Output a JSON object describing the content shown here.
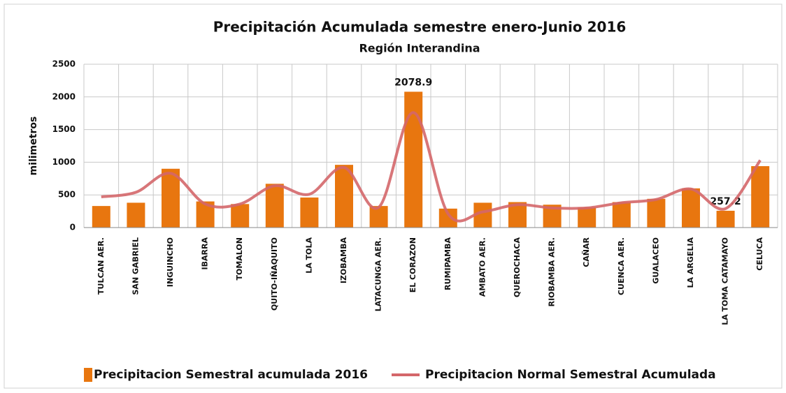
{
  "chart_data": {
    "type": "bar",
    "title": "Precipitación  Acumulada  semestre  enero-Junio  2016",
    "subtitle": "Región Interandina",
    "y_label": "milimetros",
    "categories": [
      "TULCAN AER.",
      "SAN GABRIEL",
      "INGUINCHO",
      "IBARRA",
      "TOMALON",
      "QUITO-IÑAQUITO",
      "LA TOLA",
      "IZOBAMBA",
      "LATACUNGA AER.",
      "EL CORAZON",
      "RUMIPAMBA",
      "AMBATO AER.",
      "QUEROCHACA",
      "RIOBAMBA AER.",
      "CAÑAR",
      "CUENCA AER.",
      "GUALACEO",
      "LA ARGELIA",
      "LA TOMA CATAMAYO",
      "CELUCA"
    ],
    "series": [
      {
        "name": "Precipitacion Semestral acumulada 2016",
        "type": "bar",
        "color": "#e8760f",
        "values": [
          330,
          380,
          900,
          400,
          360,
          670,
          460,
          960,
          330,
          2078.9,
          290,
          380,
          390,
          350,
          310,
          390,
          440,
          600,
          257.2,
          940
        ],
        "value_labels": [
          null,
          null,
          null,
          null,
          null,
          null,
          null,
          null,
          null,
          "2078.9",
          null,
          null,
          null,
          null,
          null,
          null,
          null,
          null,
          "257.2",
          null
        ]
      },
      {
        "name": "Precipitacion Normal Semestral Acumulada",
        "type": "line",
        "color": "#d4676a",
        "values": [
          470,
          540,
          830,
          360,
          360,
          640,
          510,
          920,
          310,
          1760,
          210,
          240,
          350,
          300,
          300,
          380,
          430,
          590,
          290,
          1030
        ]
      }
    ],
    "ylim": [
      0,
      2500
    ],
    "yticks": [
      0,
      500,
      1000,
      1500,
      2000,
      2500
    ],
    "grid": true
  }
}
